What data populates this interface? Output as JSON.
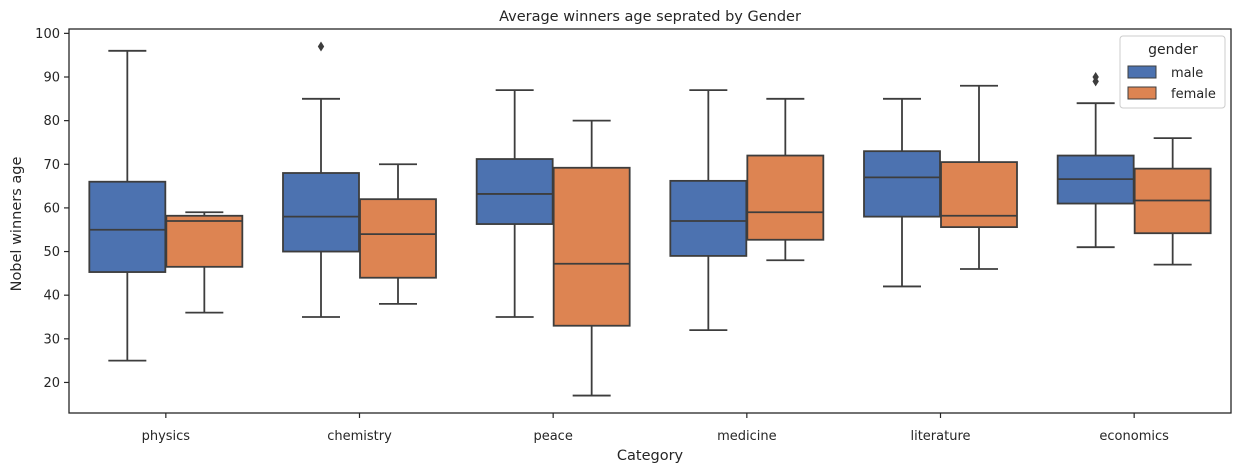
{
  "chart_data": {
    "type": "box",
    "title": "Average winners age seprated by Gender",
    "xlabel": "Category",
    "ylabel": "Nobel winners age",
    "ylim": [
      13,
      101
    ],
    "yticks": [
      20,
      30,
      40,
      50,
      60,
      70,
      80,
      90,
      100
    ],
    "categories": [
      "physics",
      "chemistry",
      "peace",
      "medicine",
      "literature",
      "economics"
    ],
    "legend": {
      "title": "gender",
      "position": "top-right"
    },
    "series": [
      {
        "name": "male",
        "color": "#4c72b0",
        "boxes": [
          {
            "whisker_low": 25,
            "q1": 45.3,
            "median": 55,
            "q3": 66,
            "whisker_high": 96,
            "outliers": []
          },
          {
            "whisker_low": 35,
            "q1": 50,
            "median": 58,
            "q3": 68,
            "whisker_high": 85,
            "outliers": [
              97
            ]
          },
          {
            "whisker_low": 35,
            "q1": 56.3,
            "median": 63.2,
            "q3": 71.2,
            "whisker_high": 87,
            "outliers": []
          },
          {
            "whisker_low": 32,
            "q1": 49,
            "median": 57,
            "q3": 66.2,
            "whisker_high": 87,
            "outliers": []
          },
          {
            "whisker_low": 42,
            "q1": 58,
            "median": 67,
            "q3": 73,
            "whisker_high": 85,
            "outliers": []
          },
          {
            "whisker_low": 51,
            "q1": 61,
            "median": 66.6,
            "q3": 72,
            "whisker_high": 84,
            "outliers": [
              89,
              90
            ]
          }
        ]
      },
      {
        "name": "female",
        "color": "#dd8452",
        "boxes": [
          {
            "whisker_low": 36,
            "q1": 46.5,
            "median": 57,
            "q3": 58.2,
            "whisker_high": 59,
            "outliers": []
          },
          {
            "whisker_low": 38,
            "q1": 44,
            "median": 54,
            "q3": 62,
            "whisker_high": 70,
            "outliers": []
          },
          {
            "whisker_low": 17,
            "q1": 33,
            "median": 47.2,
            "q3": 69.2,
            "whisker_high": 80,
            "outliers": []
          },
          {
            "whisker_low": 48,
            "q1": 52.7,
            "median": 59,
            "q3": 72,
            "whisker_high": 85,
            "outliers": []
          },
          {
            "whisker_low": 46,
            "q1": 55.6,
            "median": 58.2,
            "q3": 70.5,
            "whisker_high": 88,
            "outliers": []
          },
          {
            "whisker_low": 47,
            "q1": 54.2,
            "median": 61.7,
            "q3": 69,
            "whisker_high": 76,
            "outliers": []
          }
        ]
      }
    ],
    "grid": false
  }
}
